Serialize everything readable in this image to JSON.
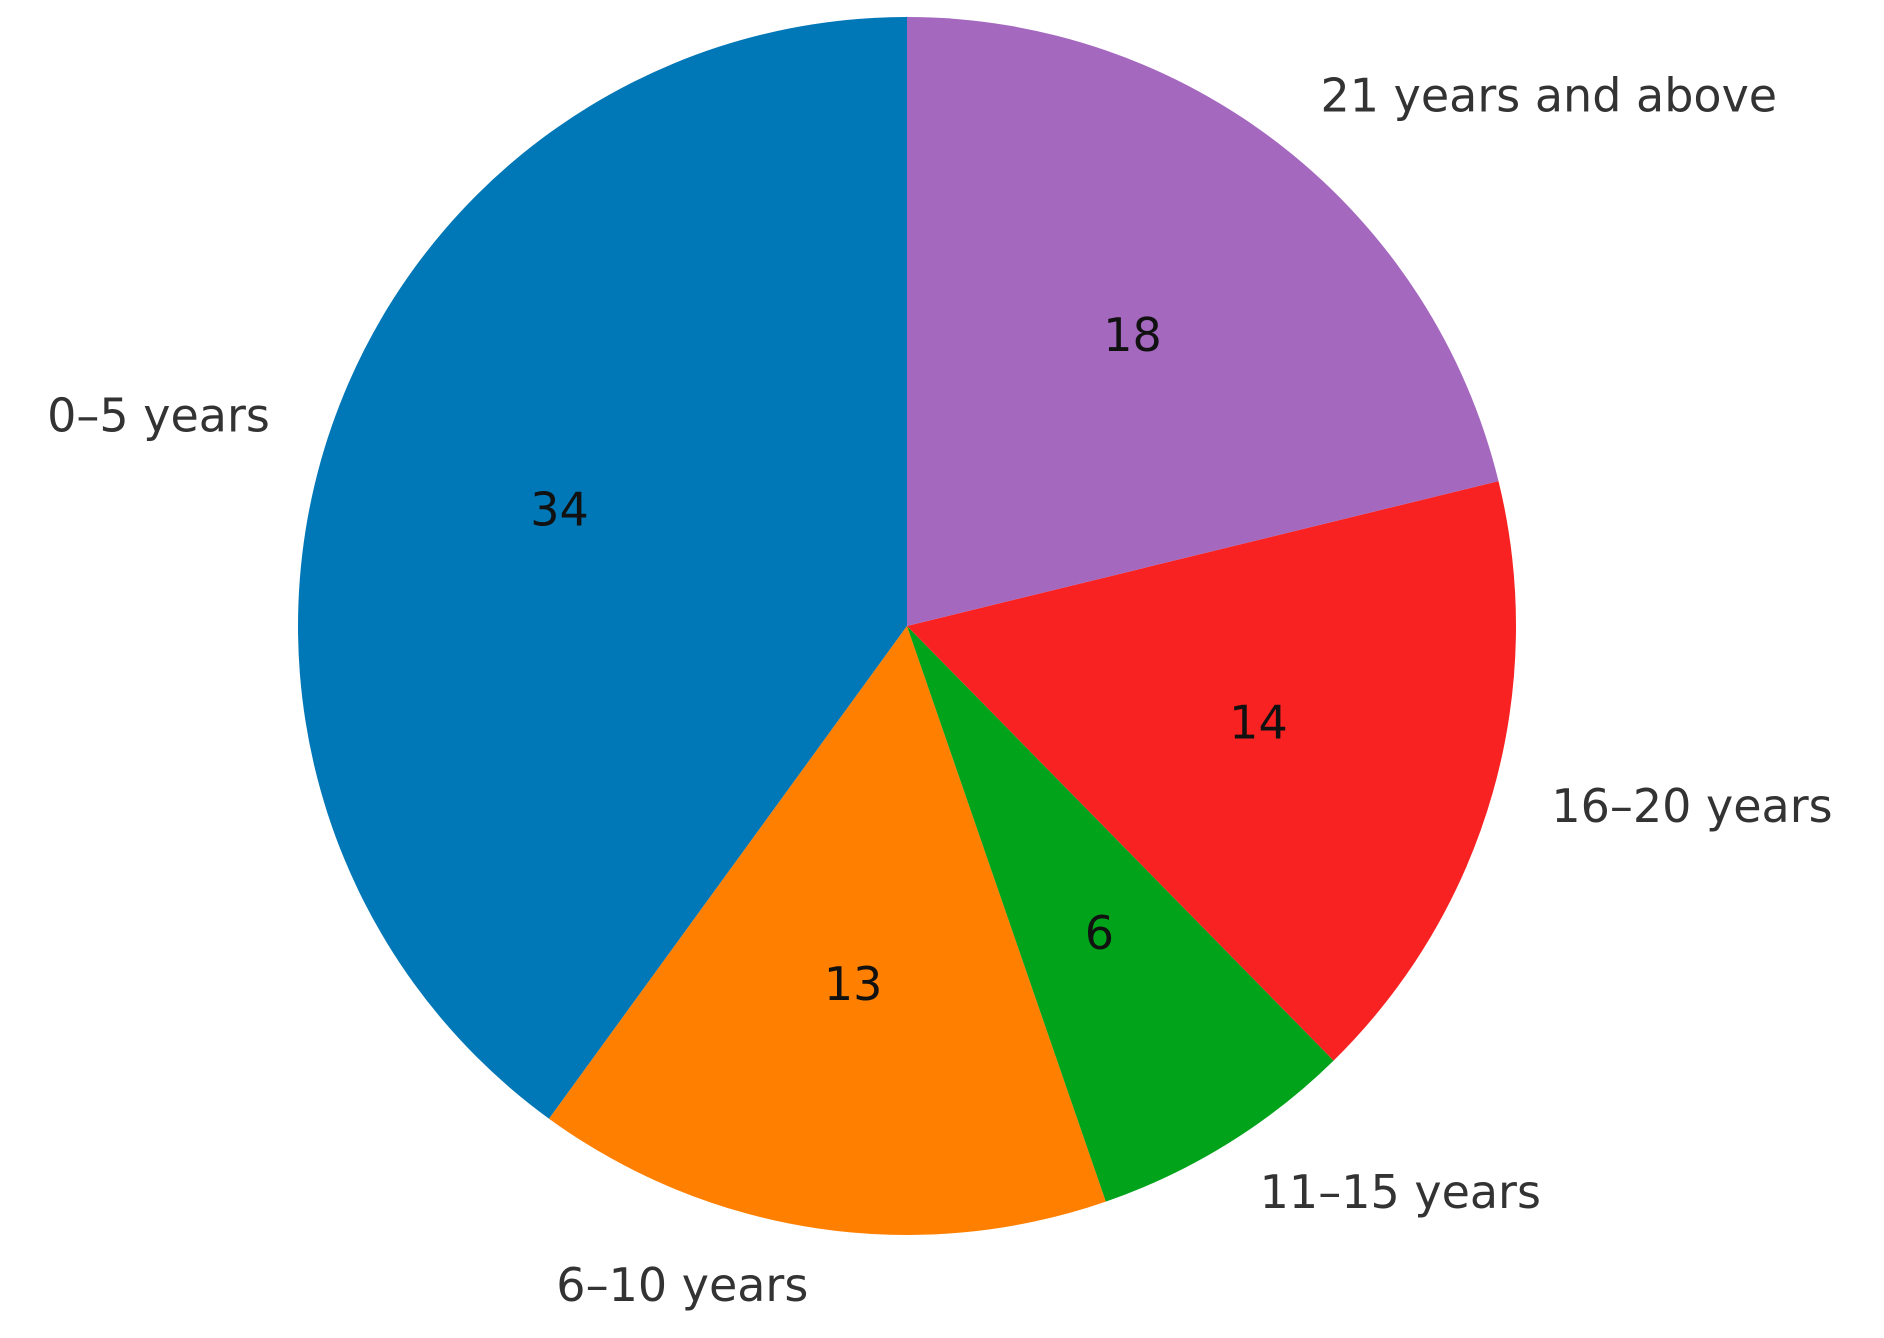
{
  "chart_data": {
    "type": "pie",
    "categories": [
      "0–5 years",
      "6–10 years",
      "11–15 years",
      "16–20 years",
      "21 years and above"
    ],
    "values": [
      34,
      13,
      6,
      14,
      18
    ],
    "colors": [
      "#0077b6",
      "#ff7f00",
      "#00a31a",
      "#f82222",
      "#a468bf"
    ],
    "start_angle": 90,
    "direction": "counterclockwise"
  }
}
